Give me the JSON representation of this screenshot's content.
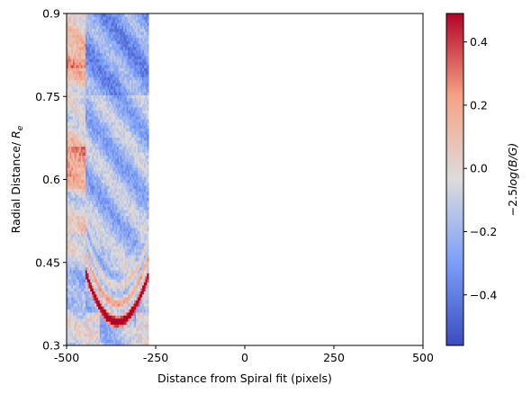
{
  "chart_data": {
    "type": "heatmap",
    "xlabel": "Distance from Spiral fit (pixels)",
    "ylabel_main": "Radial Distance/ ",
    "ylabel_symbol": "R",
    "ylabel_subscript": "e",
    "xlim": [
      -500,
      500
    ],
    "ylim": [
      0.3,
      0.9
    ],
    "x_ticks": [
      -500,
      -250,
      0,
      250,
      500
    ],
    "x_tick_labels": [
      "-500",
      "-250",
      "0",
      "250",
      "500"
    ],
    "y_ticks": [
      0.3,
      0.45,
      0.6,
      0.75,
      0.9
    ],
    "y_tick_labels": [
      "0.3",
      "0.45",
      "0.6",
      "0.75",
      "0.9"
    ],
    "data_extent_x": [
      -500,
      -270
    ],
    "panel_split_x": -445,
    "colormap": "coolwarm",
    "colorbar": {
      "label_prefix": "−2.5",
      "label_expr": "log(B/G)",
      "vmin": -0.56,
      "vmax": 0.49,
      "ticks": [
        -0.4,
        -0.2,
        0.0,
        0.2,
        0.4
      ],
      "tick_labels": [
        "−0.4",
        "−0.2",
        "0.0",
        "0.2",
        "0.4"
      ]
    },
    "features": [
      {
        "kind": "arc",
        "x_range": [
          -445,
          -270
        ],
        "y_min": 0.343,
        "y_max": 0.43,
        "value": 0.45
      },
      {
        "kind": "arc",
        "x_range": [
          -445,
          -270
        ],
        "y_min": 0.37,
        "y_max": 0.47,
        "value": 0.2
      },
      {
        "kind": "band",
        "x_range": [
          -500,
          -445
        ],
        "y_range": [
          0.58,
          0.66
        ],
        "value": 0.15
      }
    ]
  }
}
